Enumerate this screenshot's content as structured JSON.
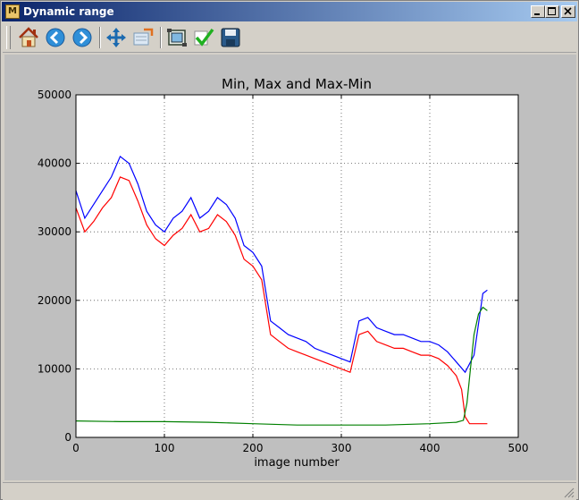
{
  "window": {
    "title": "Dynamic range"
  },
  "toolbar": {
    "buttons": [
      {
        "name": "home-icon"
      },
      {
        "name": "back-icon"
      },
      {
        "name": "forward-icon"
      },
      {
        "name": "pan-icon"
      },
      {
        "name": "zoom-icon"
      },
      {
        "name": "subplots-icon"
      },
      {
        "name": "check-icon"
      },
      {
        "name": "save-icon"
      }
    ]
  },
  "chart_data": {
    "type": "line",
    "title": "Min, Max and Max-Min",
    "xlabel": "image number",
    "ylabel": "",
    "xlim": [
      0,
      500
    ],
    "ylim": [
      0,
      50000
    ],
    "x_ticks": [
      0,
      100,
      200,
      300,
      400,
      500
    ],
    "y_ticks": [
      0,
      10000,
      20000,
      30000,
      40000,
      50000
    ],
    "grid": true,
    "colors": {
      "max": "#0000ff",
      "maxmin": "#ff0000",
      "min": "#008000"
    },
    "series": [
      {
        "color": "#0000ff",
        "x": [
          0,
          10,
          20,
          30,
          40,
          50,
          60,
          70,
          80,
          90,
          100,
          110,
          120,
          130,
          140,
          150,
          160,
          170,
          180,
          190,
          200,
          210,
          220,
          230,
          240,
          250,
          260,
          270,
          280,
          290,
          300,
          310,
          320,
          330,
          340,
          350,
          360,
          370,
          380,
          390,
          400,
          410,
          420,
          430,
          440,
          450,
          460,
          465
        ],
        "y": [
          36000,
          32000,
          34000,
          36000,
          38000,
          41000,
          40000,
          37000,
          33000,
          31000,
          30000,
          32000,
          33000,
          35000,
          32000,
          33000,
          35000,
          34000,
          32000,
          28000,
          27000,
          25000,
          17000,
          16000,
          15000,
          14500,
          14000,
          13000,
          12500,
          12000,
          11500,
          11000,
          17000,
          17500,
          16000,
          15500,
          15000,
          15000,
          14500,
          14000,
          14000,
          13500,
          12500,
          11000,
          9500,
          12000,
          21000,
          21500
        ]
      },
      {
        "color": "#ff0000",
        "x": [
          0,
          10,
          20,
          30,
          40,
          50,
          60,
          70,
          80,
          90,
          100,
          110,
          120,
          130,
          140,
          150,
          160,
          170,
          180,
          190,
          200,
          210,
          220,
          230,
          240,
          250,
          260,
          270,
          280,
          290,
          300,
          310,
          320,
          330,
          340,
          350,
          360,
          370,
          380,
          390,
          400,
          410,
          420,
          430,
          436,
          440,
          445,
          450,
          460,
          465
        ],
        "y": [
          33500,
          30000,
          31500,
          33500,
          35000,
          38000,
          37500,
          34500,
          31000,
          29000,
          28000,
          29500,
          30500,
          32500,
          30000,
          30500,
          32500,
          31500,
          29500,
          26000,
          25000,
          23000,
          15000,
          14000,
          13000,
          12500,
          12000,
          11500,
          11000,
          10500,
          10000,
          9500,
          15000,
          15500,
          14000,
          13500,
          13000,
          13000,
          12500,
          12000,
          12000,
          11500,
          10500,
          9000,
          7000,
          3000,
          2000,
          2000,
          2000,
          2000
        ]
      },
      {
        "color": "#008000",
        "x": [
          0,
          50,
          100,
          150,
          200,
          250,
          300,
          350,
          400,
          430,
          438,
          442,
          446,
          450,
          455,
          460,
          465
        ],
        "y": [
          2400,
          2300,
          2300,
          2200,
          2000,
          1800,
          1800,
          1800,
          2000,
          2200,
          2500,
          5000,
          10000,
          15000,
          18000,
          19000,
          18500
        ]
      }
    ]
  }
}
